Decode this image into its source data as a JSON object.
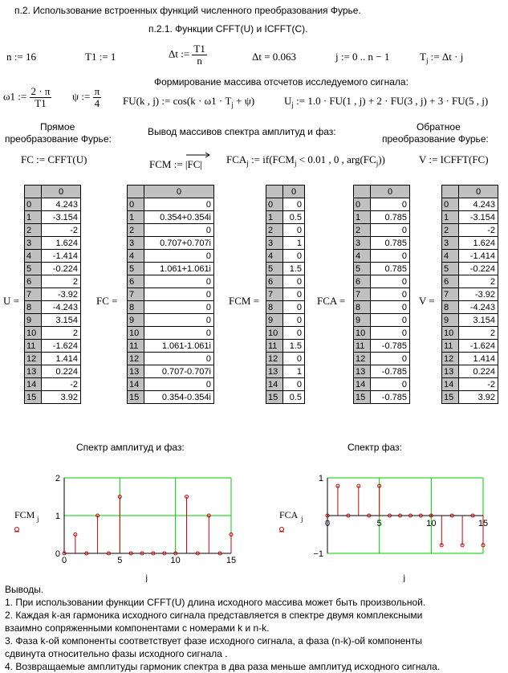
{
  "header": {
    "section": "п.2. Использование встроенных функций численного преобразования Фурье.",
    "subsection": "п.2.1. Функции  CFFT(U)  и  ICFFT(C)."
  },
  "defs": {
    "n": "n := 16",
    "t1": "T1 := 1",
    "dt_lhs": "Δt :=",
    "dt_num": "T1",
    "dt_den": "n",
    "dt_val": "Δt = 0.063",
    "j_range": "j := 0 .. n − 1",
    "tj": "T",
    "tj_rhs": " := Δt · j"
  },
  "formation_title": "Формирование массива отсчетов исследуемого сигнала:",
  "omega": {
    "lhs": "ω1 :=",
    "num": "2 · π",
    "den": "T1"
  },
  "psi": {
    "lhs": "ψ :=",
    "num": "π",
    "den": "4"
  },
  "fu": "FU(k , j) := cos(k · ω1 · T",
  "fu_end": " + ψ)",
  "uj": " := 1.0 · FU(1 , j) + 2 · FU(3 , j) + 3 · FU(5 , j)",
  "labels": {
    "direct_1": "Прямое",
    "direct_2": "преобразование Фурье:",
    "spectrum_out": "Вывод массивов спектра амплитуд и фаз:",
    "inverse_1": "Обратное",
    "inverse_2": "преобразование Фурье:"
  },
  "formulas": {
    "fc": "FC := CFFT(U)",
    "fcm": "FCM :=",
    "fcm_arg": "|FC|",
    "fca": "FCA",
    "fca_rhs": " := if(FCM",
    "fca_rhs2": " < 0.01 , 0 , arg(FC",
    "fca_end": "))",
    "v": "V := ICFFT(FC)"
  },
  "matrices": {
    "U": {
      "label": "U =",
      "header": "0",
      "values": [
        "4.243",
        "-3.154",
        "-2",
        "1.624",
        "-1.414",
        "-0.224",
        "2",
        "-3.92",
        "-4.243",
        "3.154",
        "2",
        "-1.624",
        "1.414",
        "0.224",
        "-2",
        "3.92"
      ]
    },
    "FC": {
      "label": "FC =",
      "header": "0",
      "values": [
        "0",
        "0.354+0.354i",
        "0",
        "0.707+0.707i",
        "0",
        "1.061+1.061i",
        "0",
        "0",
        "0",
        "0",
        "0",
        "1.061-1.061i",
        "0",
        "0.707-0.707i",
        "0",
        "0.354-0.354i"
      ]
    },
    "FCM": {
      "label": "FCM =",
      "header": "0",
      "values": [
        "0",
        "0.5",
        "0",
        "1",
        "0",
        "1.5",
        "0",
        "0",
        "0",
        "0",
        "0",
        "1.5",
        "0",
        "1",
        "0",
        "0.5"
      ]
    },
    "FCA": {
      "label": "FCA =",
      "header": "0",
      "values": [
        "0",
        "0.785",
        "0",
        "0.785",
        "0",
        "0.785",
        "0",
        "0",
        "0",
        "0",
        "0",
        "-0.785",
        "0",
        "-0.785",
        "0",
        "-0.785"
      ]
    },
    "V": {
      "label": "V =",
      "header": "0",
      "values": [
        "4.243",
        "-3.154",
        "-2",
        "1.624",
        "-1.414",
        "-0.224",
        "2",
        "-3.92",
        "-4.243",
        "3.154",
        "2",
        "-1.624",
        "1.414",
        "0.224",
        "-2",
        "3.92"
      ]
    }
  },
  "row_indices": [
    "0",
    "1",
    "2",
    "3",
    "4",
    "5",
    "6",
    "7",
    "8",
    "9",
    "10",
    "11",
    "12",
    "13",
    "14",
    "15"
  ],
  "chart_titles": {
    "amp": "Спектр амплитуд и фаз:",
    "phase": "Спектр фаз:"
  },
  "colors": {
    "stem": "#cc0000",
    "grid": "#00cc00",
    "tablebg": "#c0c0c0"
  },
  "chart_data": [
    {
      "type": "stem",
      "ylabel": "FCM",
      "ylabel_sub": "j",
      "xlabel": "j",
      "xlim": [
        0,
        15
      ],
      "ylim": [
        0,
        2
      ],
      "xticks": [
        "0",
        "5",
        "10",
        "15"
      ],
      "yticks": [
        "0",
        "1",
        "2"
      ],
      "x": [
        0,
        1,
        2,
        3,
        4,
        5,
        6,
        7,
        8,
        9,
        10,
        11,
        12,
        13,
        14,
        15
      ],
      "values": [
        0,
        0.5,
        0,
        1,
        0,
        1.5,
        0,
        0,
        0,
        0,
        0,
        1.5,
        0,
        1,
        0,
        0.5
      ]
    },
    {
      "type": "stem",
      "ylabel": "FCA",
      "ylabel_sub": "j",
      "xlabel": "j",
      "xlim": [
        0,
        15
      ],
      "ylim": [
        -1,
        1
      ],
      "xticks": [
        "0",
        "5",
        "10",
        "15"
      ],
      "yticks": [
        "−1",
        "1"
      ],
      "x": [
        0,
        1,
        2,
        3,
        4,
        5,
        6,
        7,
        8,
        9,
        10,
        11,
        12,
        13,
        14,
        15
      ],
      "values": [
        0,
        0.785,
        0,
        0.785,
        0,
        0.785,
        0,
        0,
        0,
        0,
        0,
        -0.785,
        0,
        -0.785,
        0,
        -0.785
      ]
    }
  ],
  "conclusions": {
    "title": "Выводы.",
    "p1": "1. При использовании функции CFFT(U) длина исходного массива может быть произвольной.",
    "p2a": "2. Каждая k-ая гармоника исходного сигнала представляется     в спектре  двумя комплексными",
    "p2b": "взаимно сопряженными компонентами     с номерами k и n-k.",
    "p3a": "3. Фаза k-ой компоненты соответствует фазе исходного сигнала, а фаза (n-k)-ой компоненты",
    "p3b": "сдвинута  относительно фазы исходного сигнала   .",
    "p4": "4. Возвращаемые амплитуды гармоник спектра в два раза меньше амплитуд исходного сигнала."
  }
}
